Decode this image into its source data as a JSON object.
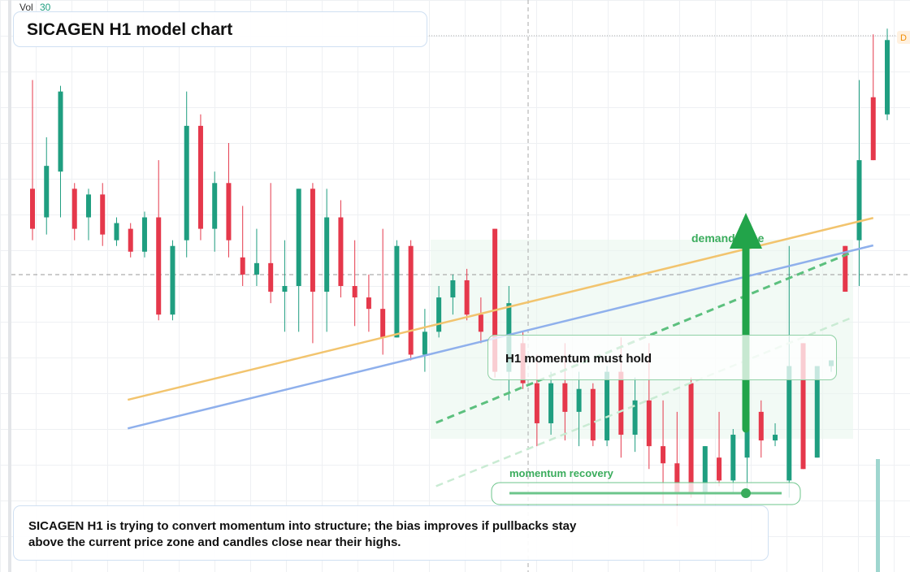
{
  "chart_data": {
    "type": "candlestick",
    "title": "SICAGEN H1 model chart",
    "volume_label": "Vol",
    "volume_value": 30,
    "price_tag": "D",
    "candles": {
      "open": [
        67,
        62,
        70,
        67,
        62,
        66,
        58,
        60,
        56,
        62,
        45,
        58,
        78,
        60,
        68,
        55,
        52,
        54,
        49,
        50,
        67,
        49,
        62,
        50,
        48,
        46,
        41,
        57,
        38,
        42,
        48,
        51,
        45,
        60,
        35,
        40,
        33,
        26,
        33,
        28,
        32,
        23,
        35,
        24,
        30,
        22,
        19,
        33,
        14,
        20,
        16,
        20,
        28,
        23,
        16,
        40,
        20,
        36,
        57,
        58,
        83,
        80
      ],
      "high": [
        86,
        76,
        85,
        68,
        67,
        68,
        62,
        61,
        63,
        72,
        58,
        84,
        80,
        70,
        75,
        64,
        60,
        68,
        58,
        67,
        68,
        67,
        65,
        58,
        52,
        60,
        58,
        58,
        46,
        50,
        52,
        53,
        48,
        60,
        50,
        42,
        38,
        35,
        40,
        35,
        33,
        36,
        41,
        34,
        40,
        30,
        28,
        34,
        22,
        28,
        25,
        25,
        30,
        26,
        57,
        40,
        36,
        37,
        57,
        86,
        94,
        95
      ],
      "low": [
        58,
        59,
        62,
        58,
        58,
        57,
        57,
        55,
        55,
        44,
        44,
        55,
        58,
        56,
        55,
        50,
        50,
        47,
        42,
        42,
        40,
        42,
        48,
        43,
        42,
        38,
        41,
        37,
        35,
        41,
        45,
        44,
        40,
        34,
        30,
        32,
        22,
        24,
        23,
        22,
        22,
        22,
        20,
        21,
        18,
        12,
        8,
        13,
        12,
        15,
        14,
        14,
        20,
        22,
        13,
        18,
        20,
        35,
        49,
        50,
        72,
        79
      ],
      "close": [
        60,
        71,
        84,
        60,
        66,
        59,
        61,
        56,
        62,
        45,
        57,
        78,
        60,
        68,
        58,
        52,
        54,
        49,
        50,
        67,
        49,
        62,
        50,
        48,
        46,
        41,
        57,
        38,
        42,
        48,
        51,
        45,
        42,
        35,
        47,
        33,
        26,
        33,
        28,
        32,
        23,
        35,
        24,
        30,
        22,
        19,
        14,
        14,
        22,
        16,
        24,
        28,
        23,
        24,
        36,
        18,
        36,
        37,
        49,
        72,
        72,
        93
      ]
    },
    "up_color": "#1f9e80",
    "down_color": "#e5384b",
    "ylim": [
      0,
      100
    ],
    "trendlines": [
      {
        "color": "#f2c46e",
        "x": [
          6.8,
          60
        ],
        "y": [
          30.1,
          61.9
        ]
      },
      {
        "color": "#8fb0ec",
        "x": [
          6.8,
          60
        ],
        "y": [
          25.1,
          57.1
        ]
      },
      {
        "color": "#5cc07e",
        "x": [
          28.8,
          58.3
        ],
        "y": [
          26.1,
          55.7
        ]
      },
      {
        "color": "#c9ebd3",
        "x": [
          28.8,
          58.6
        ],
        "y": [
          15.0,
          44.6
        ]
      }
    ],
    "annotations": {
      "box": "H1 momentum must hold",
      "zone": "demand zone",
      "slider": "momentum recovery",
      "note": "SICAGEN H1 is trying to convert momentum into structure; the bias improves if pullbacks stay above the current price zone and candles close near their highs."
    }
  }
}
